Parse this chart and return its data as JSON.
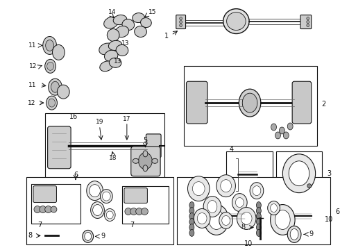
{
  "bg_color": "#ffffff",
  "fg_color": "#111111",
  "fig_width": 4.9,
  "fig_height": 3.6,
  "dpi": 100
}
